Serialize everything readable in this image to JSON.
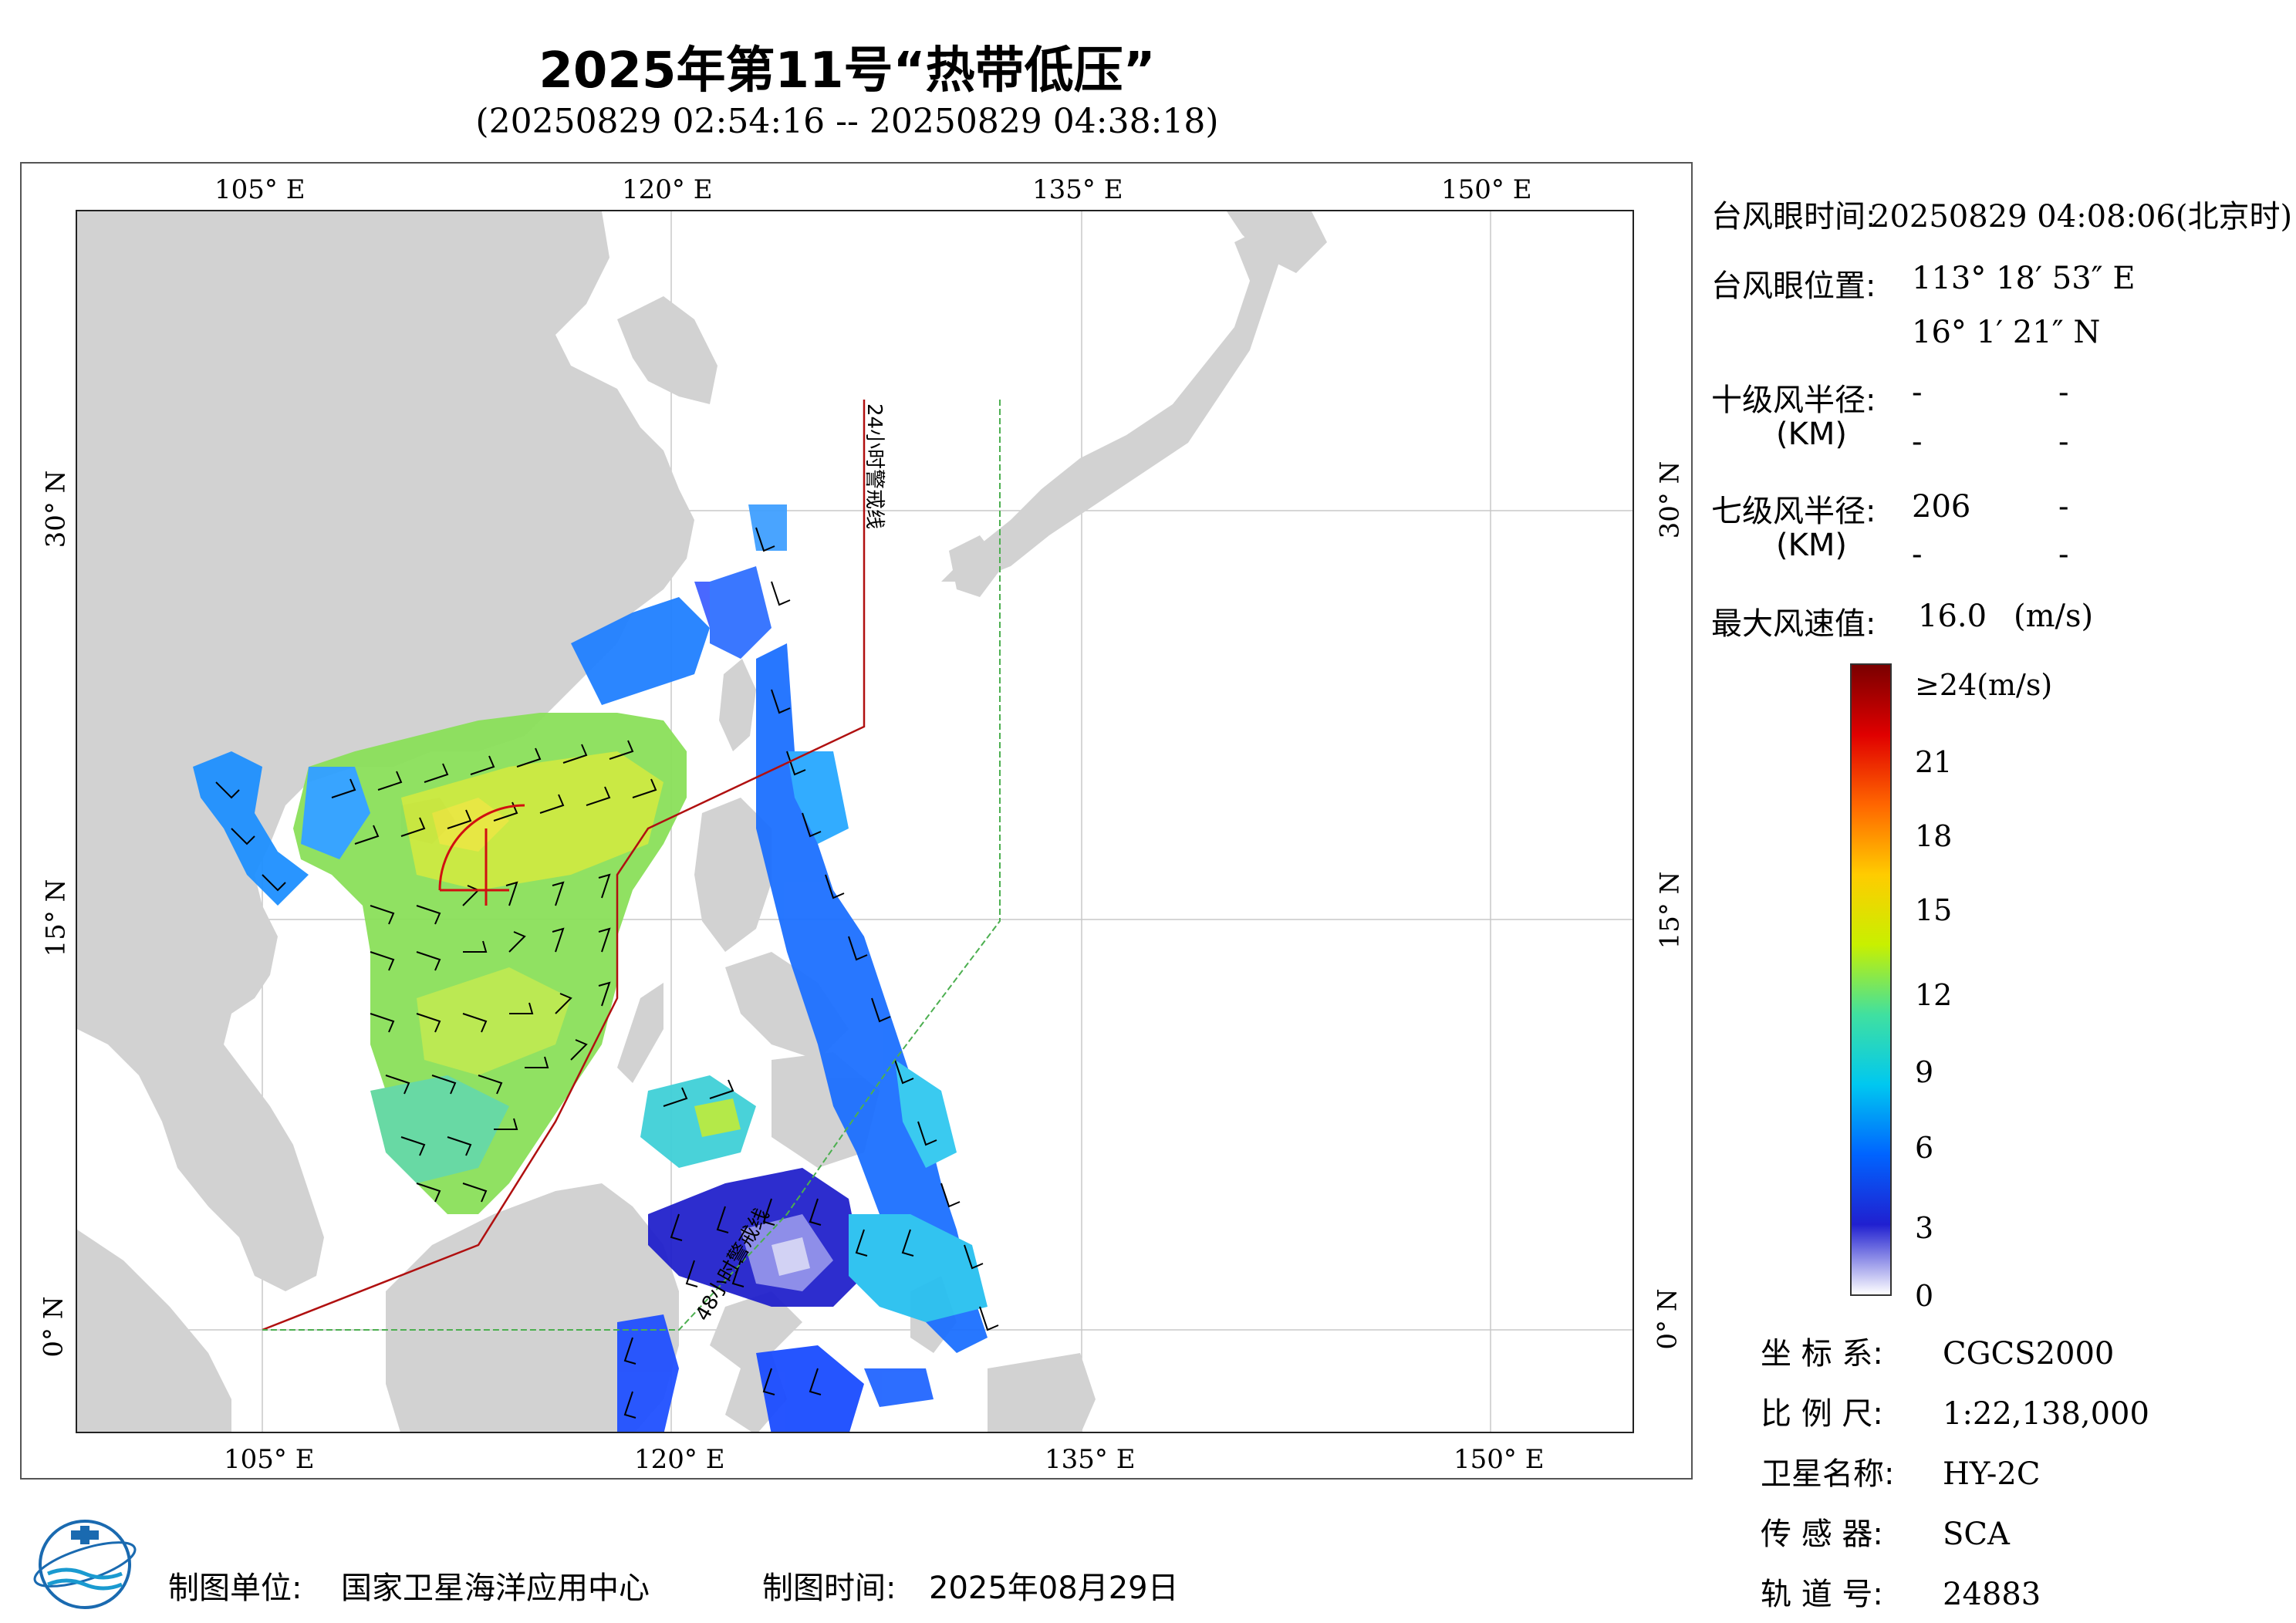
{
  "header": {
    "title": "2025年第11号“热带低压”",
    "subtitle": "(20250829 02:54:16 -- 20250829 04:38:18)"
  },
  "map": {
    "lon_ticks_top": [
      "105° E",
      "120° E",
      "135° E",
      "150° E"
    ],
    "lon_ticks_bottom": [
      "105° E",
      "120° E",
      "135° E",
      "150° E"
    ],
    "lat_ticks": [
      "30° N",
      "15° N",
      "0° N"
    ],
    "warning_line_24h": "24小时警戒线",
    "warning_line_48h": "48小时警戒线",
    "colors": {
      "land": "#d2d2d2",
      "sea": "#ffffff",
      "warning24": "#b01010",
      "warning48": "#4caf50"
    }
  },
  "typhoon": {
    "eye_time_label": "台风眼时间:",
    "eye_time_value": "20250829 04:08:06(北京时)",
    "eye_pos_label": "台风眼位置:",
    "eye_lon": "113° 18′ 53″ E",
    "eye_lat": "16° 1′ 21″ N",
    "r10_label": "十级风半径:",
    "r7_label": "七级风半径:",
    "km_unit": "(KM)",
    "r10_values": [
      "-",
      "-",
      "-",
      "-"
    ],
    "r7_values": [
      "206",
      "-",
      "-",
      "-"
    ],
    "max_wind_label": "最大风速值:",
    "max_wind_value": "16.0",
    "max_wind_unit": "(m/s)"
  },
  "colorbar": {
    "labels": [
      "≥24(m/s)",
      "21",
      "18",
      "15",
      "12",
      "9",
      "6",
      "3",
      "0"
    ],
    "stops": [
      "#7a0000",
      "#e00000",
      "#ff6600",
      "#ffcc00",
      "#c8f000",
      "#40e0a0",
      "#00c8f0",
      "#0064ff",
      "#2020d0",
      "#ffffff"
    ]
  },
  "meta": {
    "crs_label": "坐 标 系:",
    "crs_value": "CGCS2000",
    "scale_label": "比 例 尺:",
    "scale_value": "1:22,138,000",
    "sat_label": "卫星名称:",
    "sat_value": "HY-2C",
    "sensor_label": "传 感 器:",
    "sensor_value": "SCA",
    "orbit_label": "轨 道 号:",
    "orbit_value": "24883"
  },
  "footer": {
    "org_label": "制图单位:",
    "org_value": "国家卫星海洋应用中心",
    "date_label": "制图时间:",
    "date_value": "2025年08月29日"
  }
}
